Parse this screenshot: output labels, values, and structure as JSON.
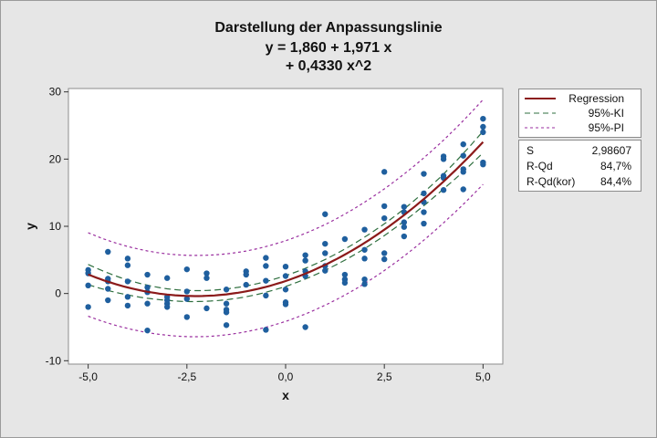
{
  "colors": {
    "background": "#e6e6e6",
    "plot_background": "#ffffff",
    "points": "#1f5f9e",
    "regression": "#8b1a1a",
    "ki": "#2f6f3f",
    "pi": "#9a2f9f"
  },
  "legend": {
    "items": [
      {
        "label": "Regression",
        "style": "solid",
        "color": "#8b1a1a"
      },
      {
        "label": "95%-KI",
        "style": "dashed",
        "color": "#2f6f3f"
      },
      {
        "label": "95%-PI",
        "style": "dashed",
        "color": "#9a2f9f"
      }
    ]
  },
  "stats": [
    {
      "name": "S",
      "value": "2,98607"
    },
    {
      "name": "R-Qd",
      "value": "84,7%"
    },
    {
      "name": "R-Qd(kor)",
      "value": "84,4%"
    }
  ],
  "chart_data": {
    "type": "scatter",
    "title": "Darstellung der Anpassungslinie",
    "subtitle_lines": [
      "y = 1,860 + 1,971 x",
      "+ 0,4330 x^2"
    ],
    "xlabel": "x",
    "ylabel": "y",
    "xlim": [
      -5.5,
      5.5
    ],
    "ylim": [
      -10.5,
      30.5
    ],
    "xticks": [
      -5,
      -2.5,
      0,
      2.5,
      5
    ],
    "xtick_labels": [
      "-5,0",
      "-2,5",
      "0,0",
      "2,5",
      "5,0"
    ],
    "yticks": [
      -10,
      0,
      10,
      20,
      30
    ],
    "ytick_labels": [
      "-10",
      "0",
      "10",
      "20",
      "30"
    ],
    "legend_position": "right",
    "fit": {
      "intercept": 1.86,
      "linear": 1.971,
      "quadratic": 0.433
    },
    "band_half_widths": {
      "ki_x": [
        -5,
        -4,
        -3,
        -2,
        -1,
        0,
        1,
        2,
        3,
        4,
        5
      ],
      "ki": [
        1.5,
        1.1,
        0.85,
        0.8,
        0.8,
        0.8,
        0.8,
        0.85,
        0.9,
        1.1,
        1.6
      ],
      "pi": [
        6.2,
        6.1,
        6.05,
        6.05,
        6.0,
        6.0,
        6.0,
        6.05,
        6.1,
        6.15,
        6.3
      ]
    },
    "points": [
      [
        -5.0,
        3.5
      ],
      [
        -5.0,
        3.0
      ],
      [
        -5.0,
        1.2
      ],
      [
        -5.0,
        -2.0
      ],
      [
        -4.5,
        6.2
      ],
      [
        -4.5,
        2.2
      ],
      [
        -4.5,
        1.8
      ],
      [
        -4.5,
        0.7
      ],
      [
        -4.5,
        -1.0
      ],
      [
        -4.0,
        5.2
      ],
      [
        -4.0,
        4.2
      ],
      [
        -4.0,
        1.8
      ],
      [
        -4.0,
        -0.5
      ],
      [
        -4.0,
        -1.8
      ],
      [
        -3.5,
        2.8
      ],
      [
        -3.5,
        0.9
      ],
      [
        -3.5,
        0.2
      ],
      [
        -3.5,
        -1.5
      ],
      [
        -3.5,
        -5.5
      ],
      [
        -3.0,
        2.3
      ],
      [
        -3.0,
        -0.5
      ],
      [
        -3.0,
        -1.0
      ],
      [
        -3.0,
        -1.5
      ],
      [
        -3.0,
        -2.0
      ],
      [
        -2.5,
        3.6
      ],
      [
        -2.5,
        0.3
      ],
      [
        -2.5,
        -0.8
      ],
      [
        -2.5,
        -3.5
      ],
      [
        -2.0,
        3.0
      ],
      [
        -2.0,
        2.3
      ],
      [
        -2.0,
        -2.2
      ],
      [
        -1.5,
        0.6
      ],
      [
        -1.5,
        -1.5
      ],
      [
        -1.5,
        -2.4
      ],
      [
        -1.5,
        -2.8
      ],
      [
        -1.5,
        -4.7
      ],
      [
        -1.0,
        3.3
      ],
      [
        -1.0,
        2.8
      ],
      [
        -1.0,
        1.3
      ],
      [
        -0.5,
        5.3
      ],
      [
        -0.5,
        4.1
      ],
      [
        -0.5,
        1.9
      ],
      [
        -0.5,
        -0.3
      ],
      [
        -0.5,
        -5.4
      ],
      [
        0.0,
        4.0
      ],
      [
        0.0,
        2.6
      ],
      [
        0.0,
        0.6
      ],
      [
        0.0,
        -1.3
      ],
      [
        0.0,
        -1.6
      ],
      [
        0.5,
        5.7
      ],
      [
        0.5,
        4.9
      ],
      [
        0.5,
        3.3
      ],
      [
        0.5,
        2.6
      ],
      [
        0.5,
        -5.0
      ],
      [
        1.0,
        11.8
      ],
      [
        1.0,
        7.4
      ],
      [
        1.0,
        6.0
      ],
      [
        1.0,
        4.1
      ],
      [
        1.0,
        3.4
      ],
      [
        1.5,
        8.1
      ],
      [
        1.5,
        2.8
      ],
      [
        1.5,
        2.1
      ],
      [
        1.5,
        1.6
      ],
      [
        2.0,
        9.5
      ],
      [
        2.0,
        6.5
      ],
      [
        2.0,
        5.2
      ],
      [
        2.0,
        2.1
      ],
      [
        2.0,
        1.4
      ],
      [
        2.5,
        18.1
      ],
      [
        2.5,
        13.0
      ],
      [
        2.5,
        11.2
      ],
      [
        2.5,
        6.0
      ],
      [
        2.5,
        5.1
      ],
      [
        3.0,
        12.9
      ],
      [
        3.0,
        12.1
      ],
      [
        3.0,
        10.6
      ],
      [
        3.0,
        9.9
      ],
      [
        3.0,
        8.5
      ],
      [
        3.5,
        17.8
      ],
      [
        3.5,
        14.9
      ],
      [
        3.5,
        13.6
      ],
      [
        3.5,
        12.1
      ],
      [
        3.5,
        10.4
      ],
      [
        4.0,
        20.4
      ],
      [
        4.0,
        20.0
      ],
      [
        4.0,
        17.5
      ],
      [
        4.0,
        17.2
      ],
      [
        4.0,
        15.4
      ],
      [
        4.5,
        22.2
      ],
      [
        4.5,
        20.5
      ],
      [
        4.5,
        18.5
      ],
      [
        4.5,
        18.1
      ],
      [
        4.5,
        15.5
      ],
      [
        5.0,
        26.0
      ],
      [
        5.0,
        24.8
      ],
      [
        5.0,
        24.0
      ],
      [
        5.0,
        19.5
      ],
      [
        5.0,
        19.2
      ]
    ]
  }
}
